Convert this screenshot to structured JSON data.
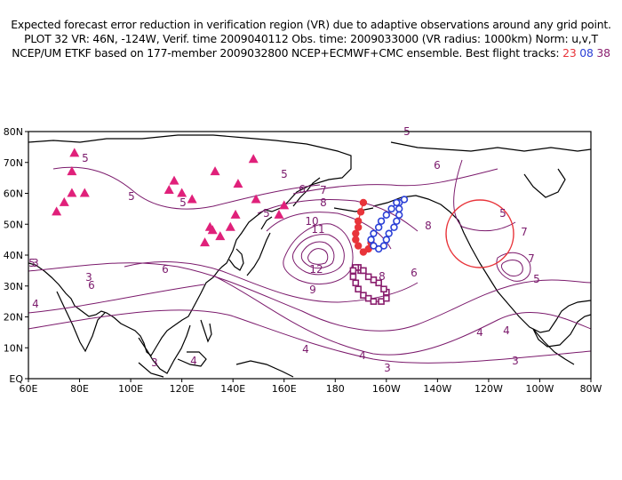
{
  "header": {
    "line1": "Expected forecast error reduction in verification region (VR) due to adaptive observations around any grid point.",
    "line2": "PLOT 32 VR: 46N, -124W, Verif. time 2009040112 Obs. time: 2009033000 (VR radius: 1000km) Norm: u,v,T",
    "line3_prefix": "NCEP/UM ETKF based on 177-member 2009032800 NCEP+ECMWF+CMC ensemble. Best flight tracks: ",
    "track_1": "23",
    "track_2": "08",
    "track_3": "38"
  },
  "colors": {
    "contour": "#7b1a6c",
    "track_23": "#e8343a",
    "track_08": "#2a3fd6",
    "track_38": "#8a1f6e",
    "triangle": "#e0207a",
    "vr_circle": "#e8343a"
  },
  "map": {
    "projection": "cylindrical equidistant",
    "lon_range": [
      60,
      280
    ],
    "lat_range": [
      0,
      80
    ],
    "xticks": [
      "60E",
      "80E",
      "100E",
      "120E",
      "140E",
      "160E",
      "180",
      "160W",
      "140W",
      "120W",
      "100W",
      "80W"
    ],
    "yticks": [
      "EQ",
      "10N",
      "20N",
      "30N",
      "40N",
      "50N",
      "60N",
      "70N",
      "80N"
    ],
    "verification_region": {
      "lat": 46,
      "lon": -124,
      "radius_km": 1000
    },
    "contour_labels": [
      "3",
      "3",
      "3",
      "3",
      "3",
      "4",
      "4",
      "4",
      "4",
      "4",
      "4",
      "5",
      "5",
      "5",
      "5",
      "5",
      "5",
      "5",
      "5",
      "5",
      "6",
      "6",
      "6",
      "6",
      "6",
      "7",
      "7",
      "7",
      "8",
      "8",
      "8",
      "9",
      "10",
      "11",
      "12"
    ],
    "track_23_points": [
      [
        57,
        -169
      ],
      [
        54,
        -170
      ],
      [
        51,
        -171
      ],
      [
        49,
        -171
      ],
      [
        47,
        -172
      ],
      [
        45,
        -172
      ],
      [
        43,
        -171
      ],
      [
        41,
        -169
      ],
      [
        42,
        -167
      ],
      [
        44,
        -166
      ]
    ],
    "track_08_points": [
      [
        58,
        -153
      ],
      [
        57,
        -155
      ],
      [
        55,
        -155
      ],
      [
        53,
        -155
      ],
      [
        51,
        -156
      ],
      [
        49,
        -157
      ],
      [
        47,
        -159
      ],
      [
        45,
        -160
      ],
      [
        43,
        -161
      ],
      [
        42,
        -163
      ],
      [
        43,
        -165
      ],
      [
        45,
        -166
      ],
      [
        47,
        -165
      ],
      [
        49,
        -163
      ],
      [
        51,
        -162
      ],
      [
        53,
        -160
      ],
      [
        55,
        -158
      ],
      [
        57,
        -156
      ]
    ],
    "track_38_points": [
      [
        35,
        -170
      ],
      [
        36,
        -171
      ],
      [
        36,
        -172
      ],
      [
        35,
        -173
      ],
      [
        33,
        -173
      ],
      [
        31,
        -172
      ],
      [
        29,
        -171
      ],
      [
        27,
        -169
      ],
      [
        26,
        -167
      ],
      [
        25,
        -165
      ],
      [
        25,
        -162
      ],
      [
        26,
        -160
      ],
      [
        28,
        -160
      ],
      [
        29,
        -161
      ],
      [
        31,
        -163
      ],
      [
        32,
        -165
      ],
      [
        33,
        -167
      ],
      [
        35,
        -169
      ]
    ],
    "triangles": [
      [
        73,
        78
      ],
      [
        67,
        77
      ],
      [
        60,
        77
      ],
      [
        57,
        74
      ],
      [
        54,
        71
      ],
      [
        60,
        82
      ],
      [
        64,
        117
      ],
      [
        61,
        115
      ],
      [
        60,
        120
      ],
      [
        58,
        124
      ],
      [
        67,
        133
      ],
      [
        71,
        148
      ],
      [
        63,
        142
      ],
      [
        58,
        149
      ],
      [
        53,
        158
      ],
      [
        49,
        131
      ],
      [
        48,
        132
      ],
      [
        46,
        135
      ],
      [
        44,
        129
      ],
      [
        49,
        139
      ],
      [
        53,
        141
      ],
      [
        56,
        160
      ]
    ]
  }
}
